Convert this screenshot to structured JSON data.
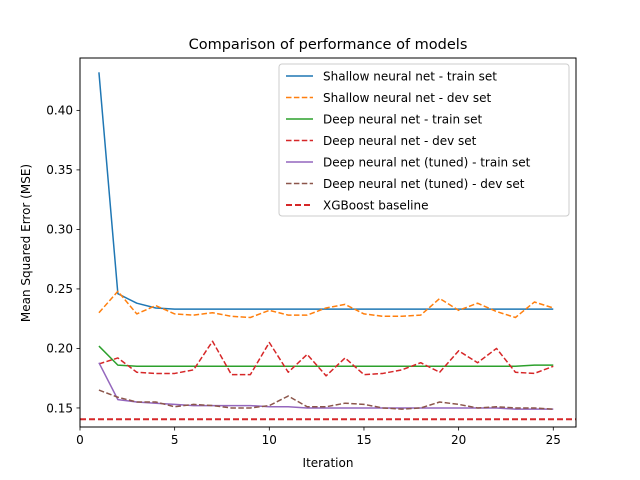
{
  "chart_data": {
    "type": "line",
    "title": "Comparison of performance of models",
    "xlabel": "Iteration",
    "ylabel": "Mean Squared Error (MSE)",
    "xlim": [
      0,
      26.2
    ],
    "ylim": [
      0.134,
      0.444
    ],
    "xticks": [
      0,
      5,
      10,
      15,
      20,
      25
    ],
    "xtick_labels": [
      "0",
      "5",
      "10",
      "15",
      "20",
      "25"
    ],
    "yticks": [
      0.15,
      0.2,
      0.25,
      0.3,
      0.35,
      0.4
    ],
    "ytick_labels": [
      "0.15",
      "0.20",
      "0.25",
      "0.30",
      "0.35",
      "0.40"
    ],
    "grid": false,
    "legend_position": "upper-right",
    "x": [
      1,
      2,
      3,
      4,
      5,
      6,
      7,
      8,
      9,
      10,
      11,
      12,
      13,
      14,
      15,
      16,
      17,
      18,
      19,
      20,
      21,
      22,
      23,
      24,
      25
    ],
    "series": [
      {
        "name": "Shallow neural net - train set",
        "color": "#1f77b4",
        "dash": "solid",
        "values": [
          0.432,
          0.246,
          0.238,
          0.234,
          0.233,
          0.233,
          0.233,
          0.233,
          0.233,
          0.233,
          0.233,
          0.233,
          0.233,
          0.233,
          0.233,
          0.233,
          0.233,
          0.233,
          0.233,
          0.233,
          0.233,
          0.233,
          0.233,
          0.233,
          0.233
        ]
      },
      {
        "name": "Shallow neural net - dev set",
        "color": "#ff7f0e",
        "dash": "dashed",
        "values": [
          0.23,
          0.248,
          0.229,
          0.236,
          0.229,
          0.228,
          0.23,
          0.227,
          0.226,
          0.232,
          0.228,
          0.228,
          0.234,
          0.237,
          0.229,
          0.227,
          0.227,
          0.228,
          0.242,
          0.232,
          0.238,
          0.231,
          0.226,
          0.239,
          0.234
        ]
      },
      {
        "name": "Deep neural net - train set",
        "color": "#2ca02c",
        "dash": "solid",
        "values": [
          0.202,
          0.186,
          0.185,
          0.185,
          0.185,
          0.185,
          0.185,
          0.185,
          0.185,
          0.185,
          0.185,
          0.185,
          0.185,
          0.185,
          0.185,
          0.185,
          0.185,
          0.185,
          0.185,
          0.185,
          0.185,
          0.185,
          0.185,
          0.186,
          0.186
        ]
      },
      {
        "name": "Deep neural net - dev set",
        "color": "#d62728",
        "dash": "dashed",
        "values": [
          0.187,
          0.192,
          0.18,
          0.179,
          0.179,
          0.182,
          0.206,
          0.178,
          0.178,
          0.205,
          0.18,
          0.195,
          0.177,
          0.192,
          0.178,
          0.179,
          0.182,
          0.188,
          0.18,
          0.198,
          0.188,
          0.2,
          0.18,
          0.179,
          0.185
        ]
      },
      {
        "name": "Deep neural net (tuned) - train set",
        "color": "#9467bd",
        "dash": "solid",
        "values": [
          0.188,
          0.157,
          0.155,
          0.154,
          0.153,
          0.152,
          0.152,
          0.152,
          0.152,
          0.151,
          0.151,
          0.15,
          0.15,
          0.15,
          0.15,
          0.15,
          0.15,
          0.15,
          0.15,
          0.15,
          0.15,
          0.15,
          0.149,
          0.149,
          0.149
        ]
      },
      {
        "name": "Deep neural net (tuned) - dev set",
        "color": "#8c564b",
        "dash": "dashed",
        "values": [
          0.165,
          0.159,
          0.155,
          0.155,
          0.151,
          0.153,
          0.152,
          0.15,
          0.15,
          0.152,
          0.16,
          0.151,
          0.151,
          0.154,
          0.153,
          0.15,
          0.149,
          0.15,
          0.155,
          0.153,
          0.15,
          0.151,
          0.15,
          0.15,
          0.149
        ]
      },
      {
        "name": "XGBoost baseline",
        "color": "#d62728",
        "dash": "dashed-thick",
        "hline": 0.1405
      }
    ]
  }
}
